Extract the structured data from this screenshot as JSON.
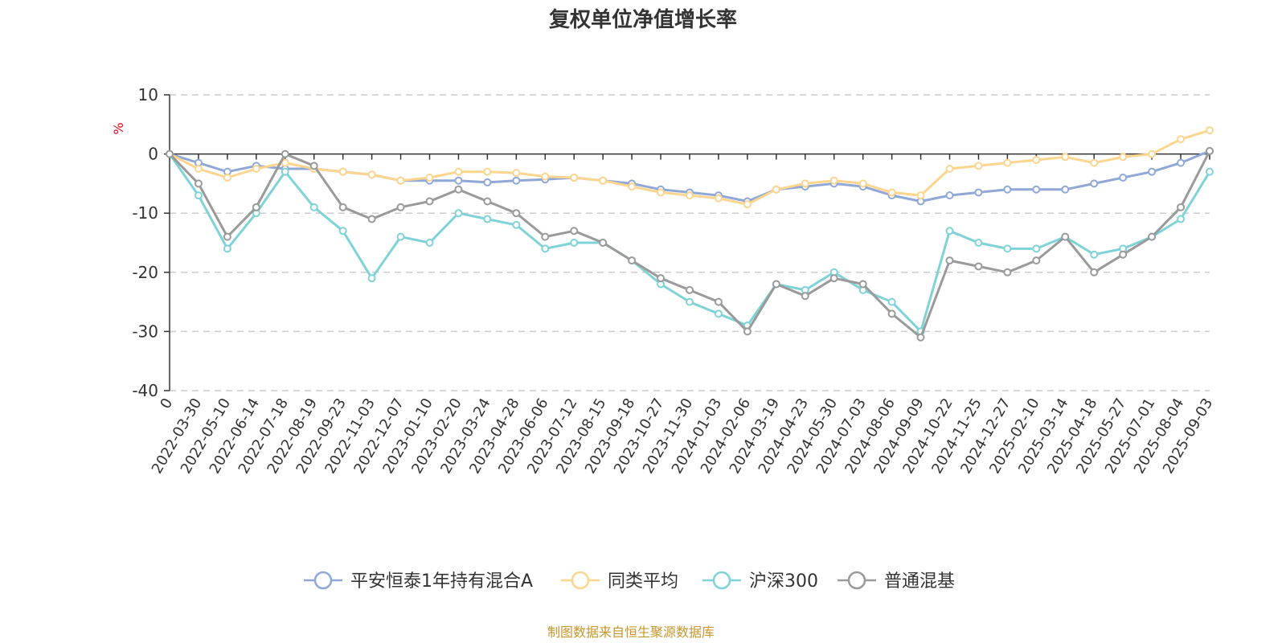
{
  "chart_data": {
    "type": "line",
    "title": "复权单位净值增长率",
    "ylabel": "%",
    "ylim": [
      -40,
      10
    ],
    "yticks": [
      10,
      0,
      -10,
      -20,
      -30,
      -40
    ],
    "grid": true,
    "legend_position": "bottom",
    "x": [
      "0",
      "2022-03-30",
      "2022-05-10",
      "2022-06-14",
      "2022-07-18",
      "2022-08-19",
      "2022-09-23",
      "2022-11-03",
      "2022-12-07",
      "2023-01-10",
      "2023-02-20",
      "2023-03-24",
      "2023-04-28",
      "2023-06-06",
      "2023-07-12",
      "2023-08-15",
      "2023-09-18",
      "2023-10-27",
      "2023-11-30",
      "2024-01-03",
      "2024-02-06",
      "2024-03-19",
      "2024-04-23",
      "2024-05-30",
      "2024-07-03",
      "2024-08-06",
      "2024-09-09",
      "2024-10-22",
      "2024-11-25",
      "2024-12-27",
      "2025-02-10",
      "2025-03-14",
      "2025-04-18",
      "2025-05-27",
      "2025-07-01",
      "2025-08-04",
      "2025-09-03"
    ],
    "series": [
      {
        "name": "平安恒泰1年持有混合A",
        "color": "#8fa8d8",
        "values": [
          0,
          -1.5,
          -3,
          -2,
          -2.5,
          -2.5,
          -3,
          -3.5,
          -4.5,
          -4.5,
          -4.5,
          -4.8,
          -4.5,
          -4.3,
          -4,
          -4.5,
          -5,
          -6,
          -6.5,
          -7,
          -8,
          -6,
          -5.5,
          -5,
          -5.5,
          -7,
          -8,
          -7,
          -6.5,
          -6,
          -6,
          -6,
          -5,
          -4,
          -3,
          -1.5,
          0.5
        ]
      },
      {
        "name": "同类平均",
        "color": "#fcd58f",
        "values": [
          0,
          -2.5,
          -4,
          -2.5,
          -1.5,
          -2.5,
          -3,
          -3.5,
          -4.5,
          -4,
          -3,
          -3,
          -3.2,
          -3.8,
          -4,
          -4.5,
          -5.5,
          -6.5,
          -7,
          -7.5,
          -8.5,
          -6,
          -5,
          -4.5,
          -5,
          -6.5,
          -7,
          -2.5,
          -2,
          -1.5,
          -1,
          -0.5,
          -1.5,
          -0.5,
          0,
          2.5,
          4
        ]
      },
      {
        "name": "沪深300",
        "color": "#7fd3d8",
        "values": [
          0,
          -7,
          -16,
          -10,
          -3,
          -9,
          -13,
          -21,
          -14,
          -15,
          -10,
          -11,
          -12,
          -16,
          -15,
          -15,
          -18,
          -22,
          -25,
          -27,
          -29,
          -22,
          -23,
          -20,
          -23,
          -25,
          -30,
          -13,
          -15,
          -16,
          -16,
          -14,
          -17,
          -16,
          -14,
          -11,
          -3
        ]
      },
      {
        "name": "普通混基",
        "color": "#9a9a9a",
        "values": [
          0,
          -5,
          -14,
          -9,
          0,
          -2,
          -9,
          -11,
          -9,
          -8,
          -6,
          -8,
          -10,
          -14,
          -13,
          -15,
          -18,
          -21,
          -23,
          -25,
          -30,
          -22,
          -24,
          -21,
          -22,
          -27,
          -31,
          -18,
          -19,
          -20,
          -18,
          -14,
          -20,
          -17,
          -14,
          -9,
          0.5
        ]
      }
    ]
  },
  "source_note": "制图数据来自恒生聚源数据库"
}
